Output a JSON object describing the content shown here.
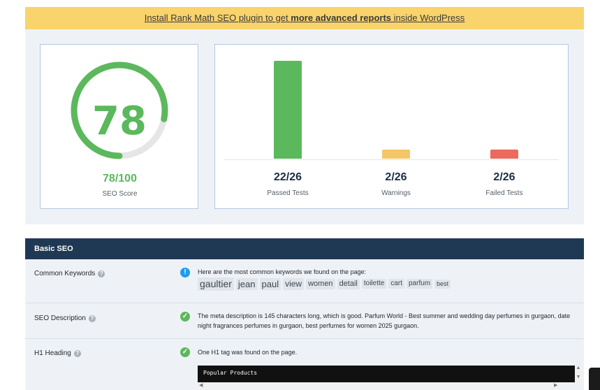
{
  "banner": {
    "link_pre": "Install Rank Math SEO plugin to get ",
    "link_bold": "more advanced reports",
    "link_post": " inside WordPress"
  },
  "score": {
    "value": "78",
    "fraction": "78/100",
    "label": "SEO Score",
    "color": "#5cb85c"
  },
  "tests": [
    {
      "value": "22/26",
      "label": "Passed Tests",
      "color": "#5cb85c"
    },
    {
      "value": "2/26",
      "label": "Warnings",
      "color": "#f5c668"
    },
    {
      "value": "2/26",
      "label": "Failed Tests",
      "color": "#ea6a5e"
    }
  ],
  "chart_data": {
    "type": "bar",
    "categories": [
      "Passed Tests",
      "Warnings",
      "Failed Tests"
    ],
    "values": [
      22,
      2,
      2
    ],
    "ylim": [
      0,
      22
    ],
    "xlabel": "",
    "ylabel": "",
    "colors": [
      "#5cb85c",
      "#f5c668",
      "#ea6a5e"
    ]
  },
  "basic_seo": {
    "title": "Basic SEO",
    "rows": [
      {
        "label": "Common Keywords",
        "status_icon": "info-icon",
        "text": "Here are the most common keywords we found on the page:",
        "keywords": [
          "gaultier",
          "jean",
          "paul",
          "view",
          "women",
          "detail",
          "toilette",
          "cart",
          "parfum",
          "best"
        ],
        "keyword_sizes": [
          14,
          13,
          13,
          12,
          11,
          11,
          10,
          10,
          10,
          9
        ]
      },
      {
        "label": "SEO Description",
        "status_icon": "check-icon",
        "text": "The meta description is 145 characters long, which is good. Parfum World - Best summer and wedding day perfumes in gurgaon, date night fragrances perfumes in gurgaon, best perfumes for women 2025 gurgaon."
      },
      {
        "label": "H1 Heading",
        "status_icon": "check-icon",
        "text": "One H1 tag was found on the page.",
        "code": "Popular Products"
      }
    ]
  }
}
